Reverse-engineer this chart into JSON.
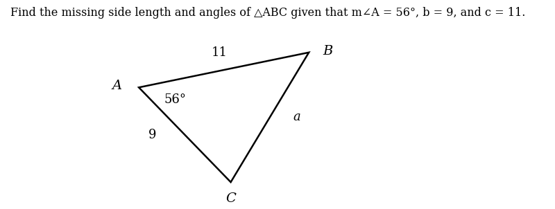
{
  "title": "Find the missing side length and angles of \\u25b3ABC given that m\\u2220A = 56\\u00b0, b = 9, and c = 11.",
  "title_plain": "Find the missing side length and angles of △ABC given that m∠A = 56°, b = 9, and c = 11.",
  "vertex_A": [
    0.3,
    0.58
  ],
  "vertex_B": [
    0.67,
    0.75
  ],
  "vertex_C": [
    0.5,
    0.12
  ],
  "label_A": "A",
  "label_B": "B",
  "label_C": "C",
  "label_angle": "56°",
  "label_side_c": "11",
  "label_side_b": "9",
  "label_side_a": "a",
  "bg_color": "#ffffff",
  "line_color": "#000000",
  "text_color": "#000000",
  "font_size_title": 11.5,
  "font_size_labels": 13,
  "font_size_vertex": 14
}
